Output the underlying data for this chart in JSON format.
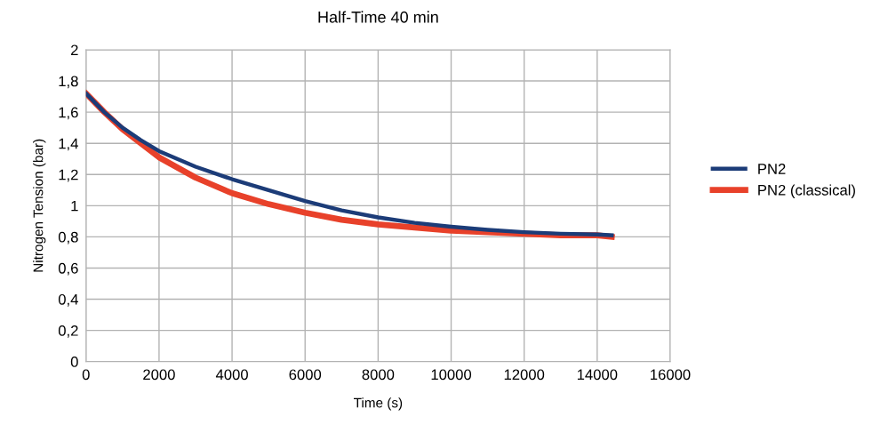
{
  "chart_data": {
    "type": "line",
    "title": "Half-Time 40 min",
    "xlabel": "Time (s)",
    "ylabel": "Nitrogen Tension (bar)",
    "xlim": [
      0,
      16000
    ],
    "xticks": [
      0,
      2000,
      4000,
      6000,
      8000,
      10000,
      12000,
      14000,
      16000
    ],
    "ylim": [
      0,
      2
    ],
    "yticks": [
      0,
      {
        "value": 0.2,
        "label": "0,2"
      },
      {
        "value": 0.4,
        "label": "0,4"
      },
      {
        "value": 0.6,
        "label": "0,6"
      },
      {
        "value": 0.8,
        "label": "0,8"
      },
      1,
      {
        "value": 1.2,
        "label": "1,2"
      },
      {
        "value": 1.4,
        "label": "1,4"
      },
      {
        "value": 1.6,
        "label": "1,6"
      },
      {
        "value": 1.8,
        "label": "1,8"
      },
      2
    ],
    "grid": true,
    "legend": "right",
    "marker": "none",
    "line_style": "solid",
    "x": [
      0,
      500,
      1000,
      1500,
      2000,
      3000,
      4000,
      5000,
      6000,
      7000,
      8000,
      9000,
      10000,
      11000,
      12000,
      13000,
      14000,
      14400
    ],
    "series": [
      {
        "name": "PN2",
        "color": "#1c3c78",
        "values": [
          1.72,
          1.6,
          1.5,
          1.42,
          1.35,
          1.25,
          1.17,
          1.1,
          1.03,
          0.97,
          0.925,
          0.89,
          0.865,
          0.845,
          0.83,
          0.82,
          0.815,
          0.81
        ]
      },
      {
        "name": "PN2 (classical)",
        "color": "#e8412a",
        "values": [
          1.72,
          1.6,
          1.49,
          1.4,
          1.31,
          1.18,
          1.08,
          1.01,
          0.955,
          0.91,
          0.88,
          0.86,
          0.84,
          0.83,
          0.82,
          0.81,
          0.81,
          0.8
        ]
      }
    ]
  }
}
